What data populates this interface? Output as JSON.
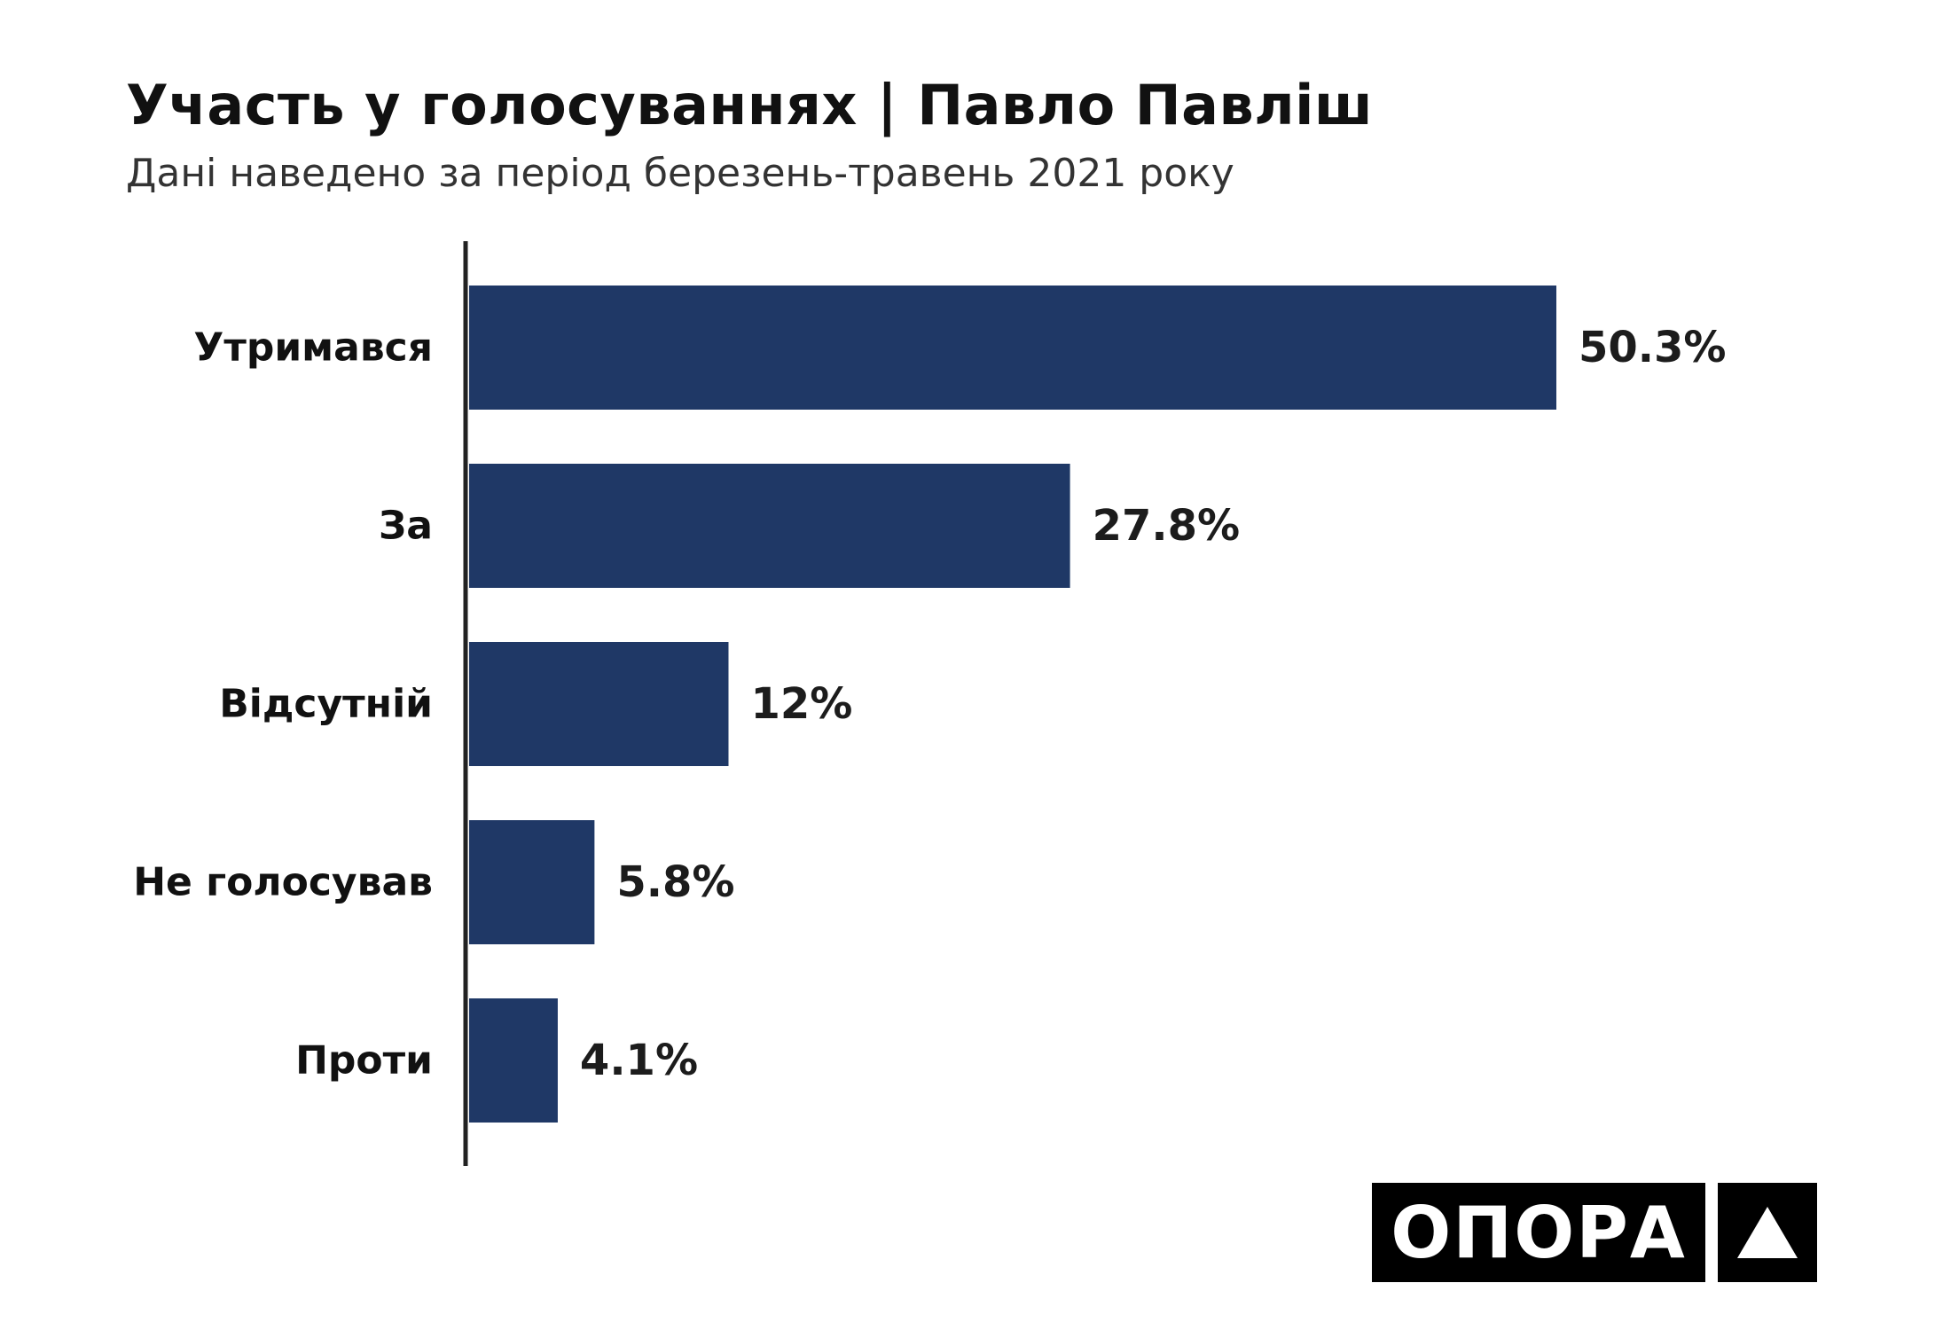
{
  "chart_data": {
    "type": "bar",
    "orientation": "horizontal",
    "title": "Участь у голосуваннях | Павло Павліш",
    "subtitle": "Дані наведено за період березень-травень 2021 року",
    "categories": [
      "Утримався",
      "За",
      "Відсутній",
      "Не голосував",
      "Проти"
    ],
    "values": [
      50.3,
      27.8,
      12,
      5.8,
      4.1
    ],
    "value_labels": [
      "50.3%",
      "27.8%",
      "12%",
      "5.8%",
      "4.1%"
    ],
    "xlim": [
      0,
      50.3
    ],
    "grid": false,
    "legend": "none",
    "bar_color": "#1f3866"
  },
  "logo": {
    "text": "ОПОРА",
    "mark": "triangle-icon"
  }
}
